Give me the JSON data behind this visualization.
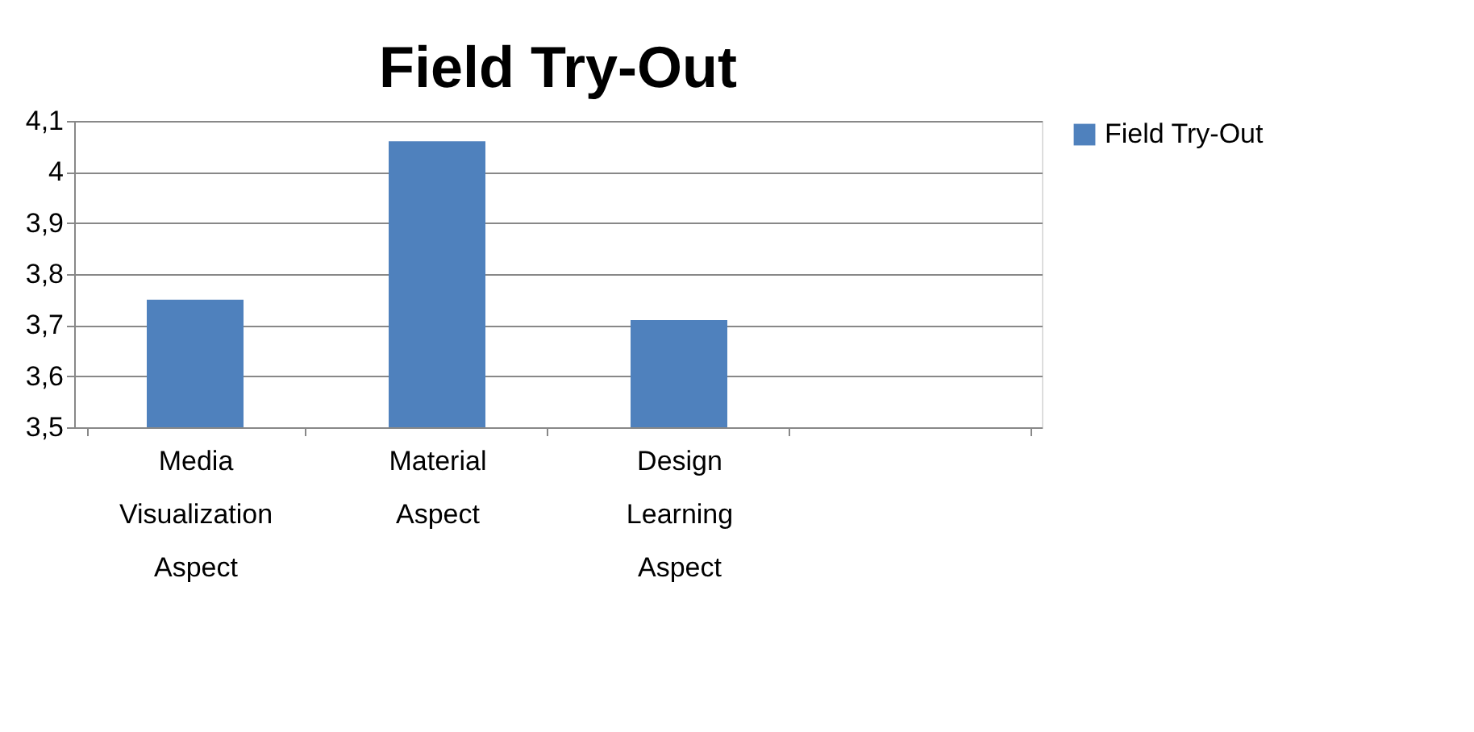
{
  "chart_data": {
    "type": "bar",
    "title": "Field Try-Out",
    "categories": [
      "Media Visualization Aspect",
      "Material Aspect",
      "Design Learning Aspect",
      null
    ],
    "series": [
      {
        "name": "Field Try-Out",
        "color": "#4f81bd",
        "values": [
          3.75,
          4.06,
          3.71,
          null
        ]
      }
    ],
    "ylim": [
      3.5,
      4.1
    ],
    "yticks": [
      {
        "value": 3.5,
        "label": "3,5"
      },
      {
        "value": 3.6,
        "label": "3,6"
      },
      {
        "value": 3.7,
        "label": "3,7"
      },
      {
        "value": 3.8,
        "label": "3,8"
      },
      {
        "value": 3.9,
        "label": "3,9"
      },
      4,
      {
        "value": 4.1,
        "label": "4,1"
      }
    ],
    "grid": "y",
    "legend": "right"
  }
}
